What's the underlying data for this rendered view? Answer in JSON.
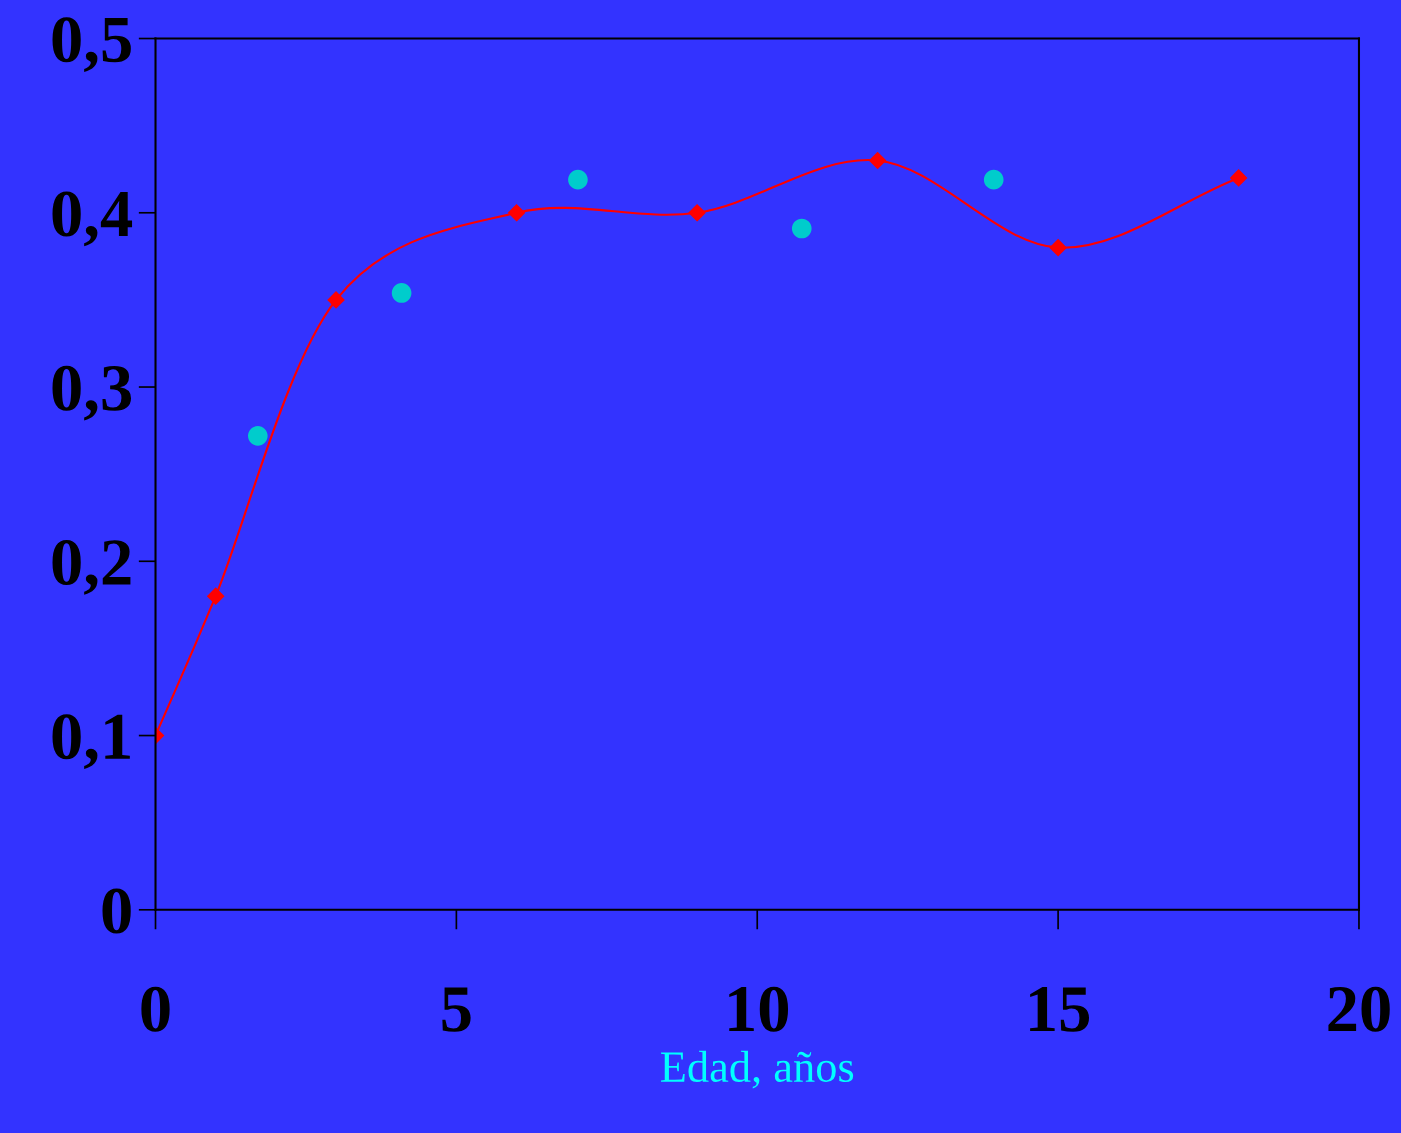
{
  "chart_data": {
    "type": "line",
    "xlabel": "Edad, años",
    "xlim": [
      0,
      20
    ],
    "xticks": [
      0,
      5,
      10,
      15,
      20
    ],
    "ylim": [
      0,
      0.5
    ],
    "yticks": [
      {
        "value": 0,
        "label": "0"
      },
      {
        "value": 0.1,
        "label": "0,1"
      },
      {
        "value": 0.2,
        "label": "0,2"
      },
      {
        "value": 0.3,
        "label": "0,3"
      },
      {
        "value": 0.4,
        "label": "0,4"
      },
      {
        "value": 0.5,
        "label": "0,5"
      }
    ],
    "grid": false,
    "legend": false,
    "series": [
      {
        "color": "#ff0000",
        "marker": "diamond",
        "line_style": "solid",
        "x": [
          0,
          1,
          3,
          6,
          9,
          12,
          15,
          18
        ],
        "values": [
          0.1,
          0.18,
          0.35,
          0.4,
          0.4,
          0.43,
          0.38,
          0.42
        ]
      },
      {
        "type": "scatter",
        "color": "#00cccc",
        "marker": "circle",
        "x": [
          1.7,
          4.09,
          7.02,
          10.74,
          13.93
        ],
        "values": [
          0.272,
          0.354,
          0.419,
          0.391,
          0.419
        ]
      }
    ]
  }
}
